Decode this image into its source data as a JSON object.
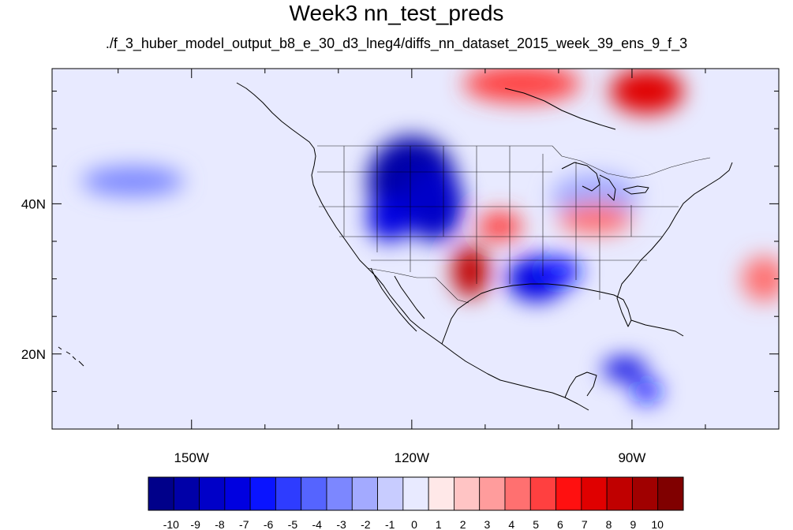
{
  "title": "Week3 nn_test_preds",
  "subtitle": "./f_3_huber_model_output_b8_e_30_d3_lneg4/diffs_nn_dataset_2015_week_39_ens_9_f_3",
  "map": {
    "lon_range": [
      -169,
      -70
    ],
    "lat_range": [
      10,
      58
    ],
    "lon_ticks": [
      {
        "value": -150,
        "label": "150W"
      },
      {
        "value": -120,
        "label": "120W"
      },
      {
        "value": -90,
        "label": "90W"
      }
    ],
    "lat_ticks": [
      {
        "value": 40,
        "label": "40N"
      },
      {
        "value": 20,
        "label": "20N"
      }
    ],
    "minor_lon_step": 10,
    "minor_lat_step": 5
  },
  "colorbar": {
    "labels": [
      "-10",
      "-9",
      "-8",
      "-7",
      "-6",
      "-5",
      "-4",
      "-3",
      "-2",
      "-1",
      "0",
      "1",
      "2",
      "3",
      "4",
      "5",
      "6",
      "7",
      "8",
      "9",
      "10"
    ],
    "colors": [
      "#00008a",
      "#0000a8",
      "#0000c8",
      "#0000e0",
      "#0a14ff",
      "#2e3cff",
      "#5564ff",
      "#7c87ff",
      "#a3aaff",
      "#c8ccff",
      "#e8eaff",
      "#ffe8e8",
      "#ffc4c4",
      "#ff9c9c",
      "#ff7070",
      "#ff4040",
      "#ff1010",
      "#e00000",
      "#c00000",
      "#a00000",
      "#800000"
    ]
  },
  "anomalies": [
    {
      "lon": -120,
      "lat": 43,
      "rx": 6,
      "ry": 6,
      "value": -9
    },
    {
      "lon": -117,
      "lat": 40,
      "rx": 4,
      "ry": 5,
      "value": -8
    },
    {
      "lon": -123,
      "lat": 38,
      "rx": 3,
      "ry": 3,
      "value": -7
    },
    {
      "lon": -103,
      "lat": 30,
      "rx": 4,
      "ry": 3,
      "value": -7
    },
    {
      "lon": -100,
      "lat": 31,
      "rx": 3,
      "ry": 2,
      "value": -6
    },
    {
      "lon": -91,
      "lat": 18,
      "rx": 3,
      "ry": 1.5,
      "value": -7
    },
    {
      "lon": -88,
      "lat": 15,
      "rx": 2,
      "ry": 1.5,
      "value": -6
    },
    {
      "lon": -95,
      "lat": 41,
      "rx": 6,
      "ry": 3,
      "value": -2
    },
    {
      "lon": -158,
      "lat": 43,
      "rx": 7,
      "ry": 2,
      "value": -3
    },
    {
      "lon": -112,
      "lat": 31,
      "rx": 2.5,
      "ry": 3.5,
      "value": 8
    },
    {
      "lon": -108,
      "lat": 37,
      "rx": 3,
      "ry": 2,
      "value": 5
    },
    {
      "lon": -88,
      "lat": 55,
      "rx": 5,
      "ry": 3,
      "value": 7
    },
    {
      "lon": -105,
      "lat": 56,
      "rx": 8,
      "ry": 2.5,
      "value": 5
    },
    {
      "lon": -95,
      "lat": 38,
      "rx": 5,
      "ry": 2,
      "value": 4
    },
    {
      "lon": -72,
      "lat": 30,
      "rx": 3,
      "ry": 3,
      "value": 4
    }
  ]
}
